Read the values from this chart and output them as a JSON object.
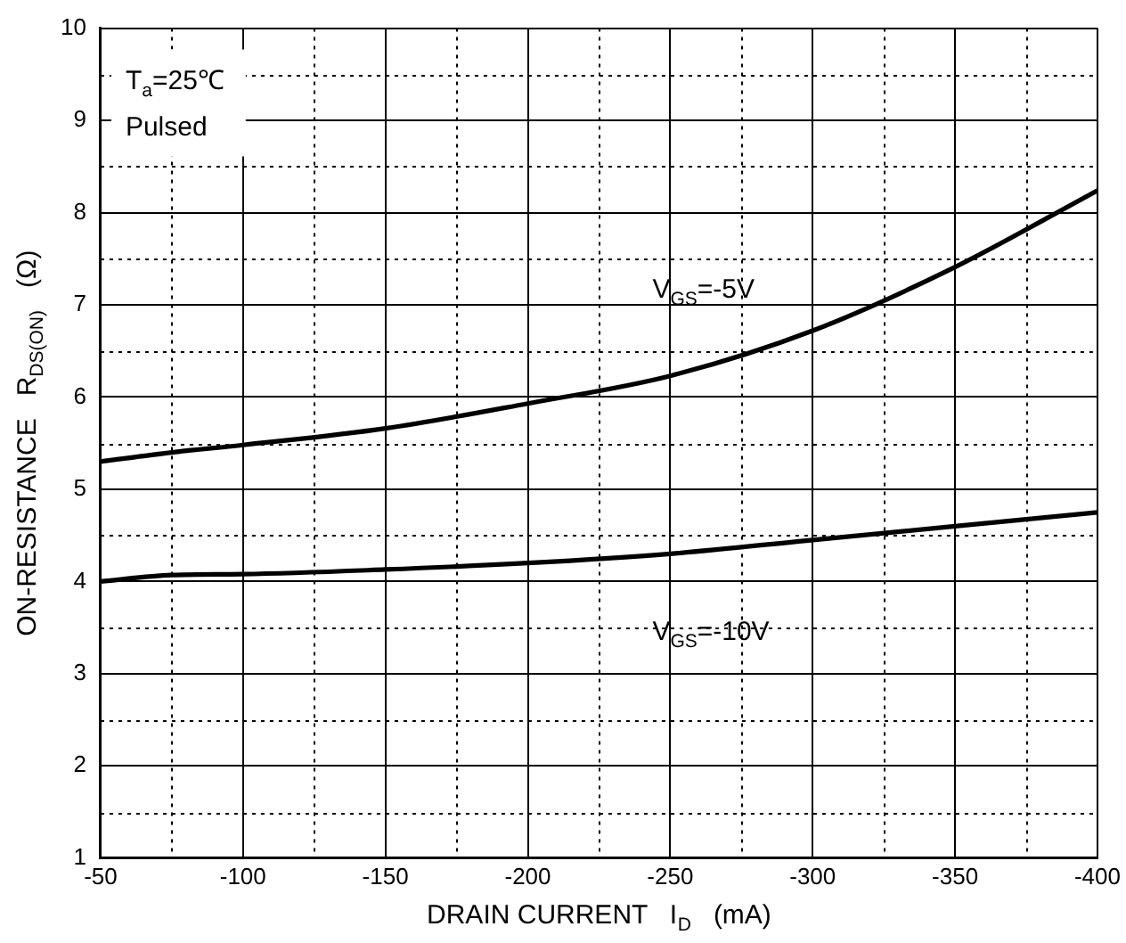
{
  "chart_data": {
    "type": "line",
    "xlabel": "DRAIN CURRENT   I$_{D}$   (mA)",
    "ylabel": "ON-RESISTANCE   R$_{DS(ON)}$   (Ω)",
    "xlim": [
      -50,
      -400
    ],
    "xticks": [
      -50,
      -100,
      -150,
      -200,
      -250,
      -300,
      -350,
      -400
    ],
    "ylim": [
      1,
      10
    ],
    "yticks": [
      1,
      2,
      3,
      4,
      5,
      6,
      7,
      8,
      9,
      10
    ],
    "grid": true,
    "legend": false,
    "marker": "none",
    "line_style": "solid",
    "x": [
      -50,
      -75,
      -100,
      -150,
      -200,
      -250,
      -300,
      -350,
      -400
    ],
    "series": [
      {
        "name": "V$_{GS}$=-5V",
        "color": "#000000",
        "values": [
          5.3,
          5.4,
          5.48,
          5.66,
          5.93,
          6.23,
          6.72,
          7.41,
          8.24
        ]
      },
      {
        "name": "V$_{GS}$=-10V",
        "color": "#000000",
        "values": [
          4.0,
          4.07,
          4.08,
          4.13,
          4.2,
          4.3,
          4.45,
          4.6,
          4.75
        ]
      }
    ],
    "annotations": [
      "T$_{a}$=25℃",
      "Pulsed"
    ]
  }
}
